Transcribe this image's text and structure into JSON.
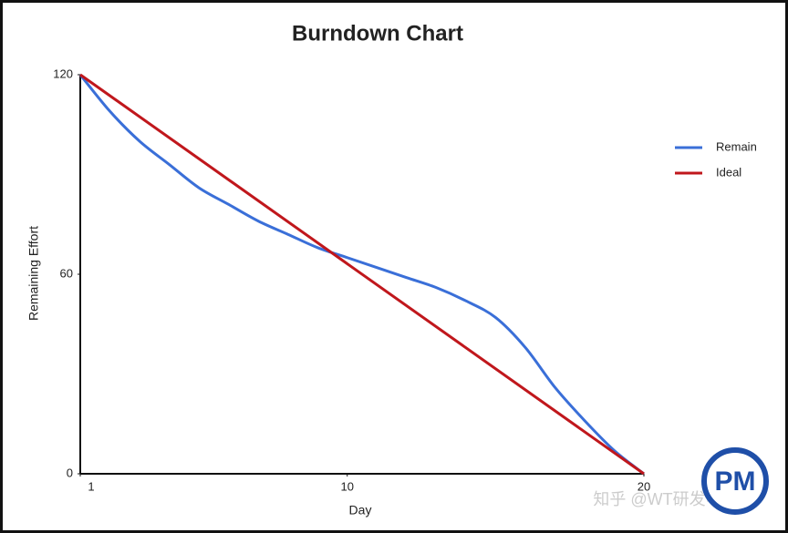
{
  "chart_data": {
    "type": "line",
    "title": "Burndown Chart",
    "x_label": "Day",
    "y_label": "Remaining Effort",
    "x": [
      1,
      2,
      3,
      4,
      5,
      6,
      7,
      8,
      9,
      10,
      11,
      12,
      13,
      14,
      15,
      16,
      17,
      18,
      19,
      20
    ],
    "series": [
      {
        "name": "Remain",
        "color": "#3a6fd8",
        "smooth": true,
        "values": [
          120,
          109,
          100,
          93,
          86,
          81,
          76,
          72,
          68,
          65,
          62,
          59,
          56,
          52,
          47,
          38,
          26,
          16,
          7,
          0
        ]
      },
      {
        "name": "Ideal",
        "color": "#c0171c",
        "x": [
          1,
          20
        ],
        "values": [
          120,
          0
        ]
      }
    ],
    "xlim": [
      1,
      20
    ],
    "ylim": [
      0,
      120
    ],
    "xticks": [
      1,
      10,
      20
    ],
    "yticks": [
      0,
      60,
      120
    ],
    "legend": "right"
  },
  "watermark": "知乎 @WT研发中心",
  "logo": "PM"
}
